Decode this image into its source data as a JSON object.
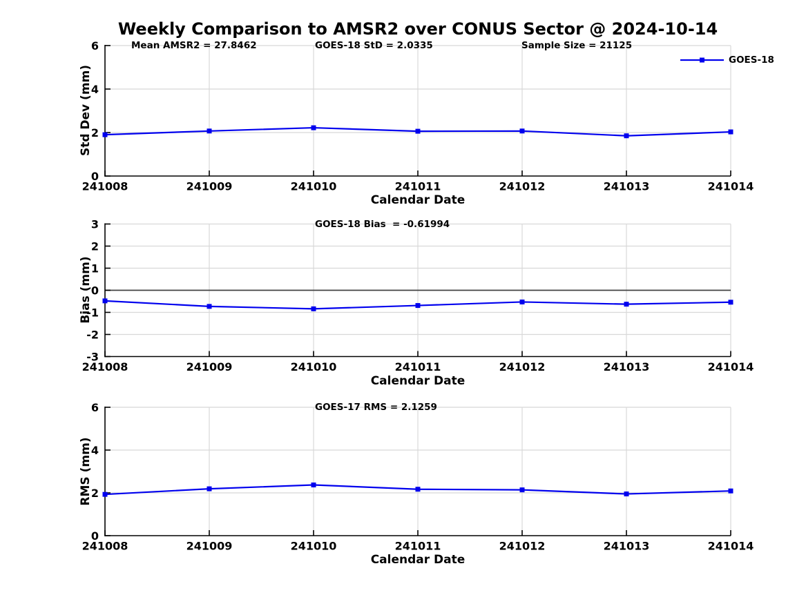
{
  "title": "Weekly Comparison to AMSR2 over CONUS Sector @ 2024-10-14",
  "legend": {
    "label": "GOES-18",
    "position": "top-right",
    "box": "off"
  },
  "colors": {
    "line": "#0000EE",
    "marker": "#0000EE",
    "grid": "#D8D8D8",
    "zero_line": "#404040",
    "axis": "#000000",
    "text": "#000000"
  },
  "chart_data": [
    {
      "type": "line",
      "id": "std-dev",
      "annotations": [
        "Mean AMSR2 = 27.8462",
        "GOES-18 StD = 2.0335",
        "Sample Size = 21125"
      ],
      "ylabel": "Std Dev (mm)",
      "xlabel": "Calendar Date",
      "categories": [
        "241008",
        "241009",
        "241010",
        "241011",
        "241012",
        "241013",
        "241014"
      ],
      "series": [
        {
          "name": "GOES-18",
          "values": [
            1.9,
            2.07,
            2.22,
            2.06,
            2.07,
            1.85,
            2.03
          ]
        }
      ],
      "ylim": [
        0,
        6
      ],
      "yticks": [
        0,
        2,
        4,
        6
      ],
      "grid": true,
      "zero_line": false,
      "marker": "square"
    },
    {
      "type": "line",
      "id": "bias",
      "annotations": [
        "GOES-18 Bias  = -0.61994"
      ],
      "ylabel": "Bias (mm)",
      "xlabel": "Calendar Date",
      "categories": [
        "241008",
        "241009",
        "241010",
        "241011",
        "241012",
        "241013",
        "241014"
      ],
      "series": [
        {
          "name": "GOES-18",
          "values": [
            -0.48,
            -0.73,
            -0.84,
            -0.69,
            -0.53,
            -0.63,
            -0.54
          ]
        }
      ],
      "ylim": [
        -3,
        3
      ],
      "yticks": [
        -3,
        -2,
        -1,
        0,
        1,
        2,
        3
      ],
      "grid": true,
      "zero_line": true,
      "marker": "square"
    },
    {
      "type": "line",
      "id": "rms",
      "annotations": [
        "GOES-17 RMS = 2.1259"
      ],
      "ylabel": "RMS (mm)",
      "xlabel": "Calendar Date",
      "categories": [
        "241008",
        "241009",
        "241010",
        "241011",
        "241012",
        "241013",
        "241014"
      ],
      "series": [
        {
          "name": "GOES-18",
          "values": [
            1.93,
            2.19,
            2.37,
            2.17,
            2.14,
            1.95,
            2.09
          ]
        }
      ],
      "ylim": [
        0,
        6
      ],
      "yticks": [
        0,
        2,
        4,
        6
      ],
      "grid": true,
      "zero_line": false,
      "marker": "square"
    }
  ]
}
